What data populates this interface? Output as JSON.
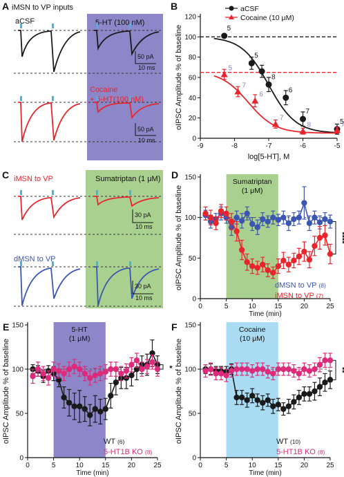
{
  "colors": {
    "black": "#1a1a1a",
    "red": "#e8242c",
    "blue": "#3b55b3",
    "pink": "#dd2a7a",
    "purple": "#8d86c9",
    "green": "#a9d08e",
    "cyan": "#a9dcf2",
    "cyan_tick": "#3fb6e8"
  },
  "panel_a": {
    "letter": "A",
    "title": "iMSN to VP inputs",
    "acsf": "aCSF",
    "drug": "5-HT (100 nM)",
    "cocaine_l1": "Cocaine",
    "cocaine_l2": "+ 5-HT(100 nM)",
    "scale_top_pa": "50 pA",
    "scale_top_ms": "10 ms",
    "scale_bot_pa": "50 pA",
    "scale_bot_ms": "10 ms"
  },
  "panel_c": {
    "letter": "C",
    "imsn": "iMSN to VP",
    "dmsn": "dMSN to VP",
    "drug": "Sumatriptan (1 μM)",
    "scale_top_pa": "30 pA",
    "scale_top_ms": "10 ms",
    "scale_bot_pa": "30 pA",
    "scale_bot_ms": "10 ms"
  },
  "chart_data": [
    {
      "id": "B",
      "letter": "B",
      "type": "scatter",
      "xlabel": "log[5-HT], M",
      "ylabel": "oIPSC Amplitude % of baseline",
      "xlim": [
        -9,
        -5
      ],
      "ylim": [
        0,
        120
      ],
      "xticks": [
        -9,
        -8,
        -7,
        -6,
        -5
      ],
      "yticks": [
        0,
        20,
        40,
        60,
        80,
        100,
        120
      ],
      "legend_position": "top-right",
      "series": [
        {
          "name": "aCSF",
          "color": "#1a1a1a",
          "marker": "circle",
          "baseline": 100,
          "x": [
            -8.3,
            -7.5,
            -7.2,
            -7.0,
            -6.5,
            -6.0,
            -5.0
          ],
          "y": [
            101,
            74,
            66,
            53,
            40,
            19,
            9
          ],
          "err": [
            0,
            6,
            6,
            7,
            7,
            7,
            5
          ],
          "n": [
            "5",
            "5",
            "",
            "8",
            "6",
            "7",
            "5"
          ],
          "fit": {
            "top": 100,
            "bottom": 5,
            "logec50": -7.0,
            "hill": 1.1
          }
        },
        {
          "name": "Cocaine (10 μM)",
          "color": "#e8242c",
          "marker": "triangle",
          "baseline": 65,
          "x": [
            -8.3,
            -7.9,
            -7.4,
            -6.8,
            -6.0,
            -5.0
          ],
          "y": [
            63,
            46,
            37,
            14,
            7,
            8
          ],
          "err": [
            5,
            5,
            6,
            4,
            3,
            3
          ],
          "n": [
            "5",
            "7",
            "6",
            "7",
            "8",
            "7"
          ],
          "fit": {
            "top": 66,
            "bottom": 5,
            "logec50": -7.6,
            "hill": 1.1
          }
        }
      ]
    },
    {
      "id": "D",
      "letter": "D",
      "type": "scatter",
      "xlabel": "Time (min)",
      "ylabel": "oIPSC Amplitude % of baseline",
      "xlim": [
        0,
        25
      ],
      "ylim": [
        0,
        150
      ],
      "xticks": [
        0,
        5,
        10,
        15,
        20,
        25
      ],
      "yticks": [
        0,
        50,
        100,
        150
      ],
      "shade": {
        "from": 5,
        "to": 15,
        "label1": "Sumatriptan",
        "label2": "(1 μM)",
        "color": "#a9d08e"
      },
      "significance": "****",
      "series": [
        {
          "name": "dMSN to VP",
          "n": "(8)",
          "color": "#3b55b3",
          "x": [
            1,
            2,
            3,
            4,
            5,
            6,
            7,
            8,
            9,
            10,
            11,
            12,
            13,
            14,
            15,
            16,
            17,
            18,
            19,
            20,
            21,
            22,
            23,
            24,
            25
          ],
          "y": [
            103,
            95,
            98,
            105,
            100,
            88,
            100,
            96,
            105,
            92,
            88,
            98,
            95,
            100,
            97,
            100,
            93,
            98,
            100,
            118,
            93,
            100,
            94,
            98,
            95
          ],
          "err": [
            6,
            8,
            7,
            8,
            7,
            10,
            8,
            9,
            8,
            8,
            9,
            8,
            7,
            8,
            7,
            8,
            9,
            8,
            8,
            20,
            9,
            8,
            8,
            8,
            8
          ]
        },
        {
          "name": "iMSN to VP",
          "n": "(7)",
          "color": "#e8242c",
          "x": [
            1,
            2,
            3,
            4,
            5,
            6,
            7,
            8,
            9,
            10,
            11,
            12,
            13,
            14,
            15,
            16,
            17,
            18,
            19,
            20,
            21,
            22,
            23,
            24,
            25
          ],
          "y": [
            105,
            100,
            93,
            108,
            105,
            95,
            83,
            60,
            45,
            40,
            38,
            42,
            35,
            32,
            40,
            47,
            42,
            47,
            52,
            58,
            48,
            65,
            75,
            78,
            55
          ],
          "err": [
            8,
            9,
            8,
            8,
            8,
            10,
            12,
            12,
            10,
            9,
            8,
            9,
            8,
            7,
            9,
            10,
            9,
            9,
            10,
            12,
            10,
            12,
            14,
            12,
            12
          ]
        }
      ]
    },
    {
      "id": "E",
      "letter": "E",
      "type": "scatter",
      "xlabel": "Time (min)",
      "ylabel": "oIPSC Amplitude % of baseline",
      "xlim": [
        0,
        25
      ],
      "ylim": [
        0,
        150
      ],
      "xticks": [
        0,
        5,
        10,
        15,
        20,
        25
      ],
      "yticks": [
        0,
        50,
        100,
        150
      ],
      "shade": {
        "from": 5,
        "to": 15,
        "label1": "5-HT",
        "label2": "(1 μM)",
        "color": "#8d86c9"
      },
      "significance": "*",
      "series": [
        {
          "name": "WT",
          "n": "(6)",
          "color": "#1a1a1a",
          "x": [
            1,
            2,
            3,
            4,
            5,
            6,
            7,
            8,
            9,
            10,
            11,
            12,
            13,
            14,
            15,
            16,
            17,
            18,
            19,
            20,
            21,
            22,
            23,
            24,
            25
          ],
          "y": [
            100,
            98,
            92,
            98,
            95,
            88,
            68,
            62,
            58,
            58,
            55,
            48,
            55,
            52,
            55,
            70,
            85,
            90,
            90,
            93,
            100,
            105,
            105,
            118,
            105
          ],
          "err": [
            5,
            6,
            7,
            6,
            8,
            8,
            12,
            15,
            15,
            18,
            14,
            12,
            15,
            14,
            12,
            14,
            14,
            12,
            12,
            12,
            12,
            10,
            12,
            15,
            10
          ]
        },
        {
          "name": "5-HT1B KO",
          "n": "(8)",
          "color": "#dd2a7a",
          "x": [
            1,
            2,
            3,
            4,
            5,
            6,
            7,
            8,
            9,
            10,
            11,
            12,
            13,
            14,
            15,
            16,
            17,
            18,
            19,
            20,
            21,
            22,
            23,
            24,
            25
          ],
          "y": [
            92,
            100,
            95,
            90,
            100,
            98,
            95,
            100,
            103,
            100,
            95,
            90,
            93,
            95,
            97,
            100,
            100,
            95,
            98,
            105,
            110,
            100,
            103,
            108,
            100
          ],
          "err": [
            8,
            8,
            8,
            8,
            8,
            8,
            8,
            8,
            8,
            8,
            8,
            8,
            8,
            8,
            8,
            8,
            8,
            8,
            8,
            8,
            8,
            8,
            8,
            8,
            8
          ]
        }
      ]
    },
    {
      "id": "F",
      "letter": "F",
      "type": "scatter",
      "xlabel": "Time (min)",
      "ylabel": "oIPSC Amplitude % of baseline",
      "xlim": [
        0,
        25
      ],
      "ylim": [
        0,
        150
      ],
      "xticks": [
        0,
        5,
        10,
        15,
        20,
        25
      ],
      "yticks": [
        0,
        50,
        100,
        150
      ],
      "shade": {
        "from": 5,
        "to": 15,
        "label1": "Cocaine",
        "label2": "(10 μM)",
        "color": "#a9dcf2"
      },
      "significance": "**",
      "series": [
        {
          "name": "WT",
          "n": "(10)",
          "color": "#1a1a1a",
          "x": [
            1,
            2,
            3,
            4,
            5,
            6,
            7,
            8,
            9,
            10,
            11,
            12,
            13,
            14,
            15,
            16,
            17,
            18,
            19,
            20,
            21,
            22,
            23,
            24,
            25
          ],
          "y": [
            100,
            100,
            98,
            98,
            97,
            100,
            68,
            68,
            65,
            70,
            65,
            62,
            65,
            58,
            60,
            55,
            58,
            63,
            68,
            72,
            72,
            75,
            80,
            85,
            88
          ],
          "err": [
            5,
            6,
            5,
            5,
            6,
            6,
            8,
            8,
            8,
            8,
            7,
            8,
            7,
            8,
            7,
            7,
            8,
            8,
            8,
            8,
            8,
            10,
            10,
            10,
            10
          ]
        },
        {
          "name": "5-HT1B KO",
          "n": "(8)",
          "color": "#dd2a7a",
          "x": [
            1,
            2,
            3,
            4,
            5,
            6,
            7,
            8,
            9,
            10,
            11,
            12,
            13,
            14,
            15,
            16,
            17,
            18,
            19,
            20,
            21,
            22,
            23,
            24,
            25
          ],
          "y": [
            98,
            100,
            95,
            95,
            93,
            98,
            100,
            100,
            100,
            98,
            100,
            100,
            97,
            95,
            100,
            100,
            100,
            98,
            95,
            100,
            98,
            100,
            105,
            110,
            110
          ],
          "err": [
            7,
            7,
            7,
            7,
            7,
            7,
            7,
            7,
            7,
            7,
            7,
            7,
            7,
            7,
            7,
            7,
            7,
            7,
            7,
            7,
            7,
            7,
            8,
            8,
            8
          ]
        }
      ]
    }
  ]
}
